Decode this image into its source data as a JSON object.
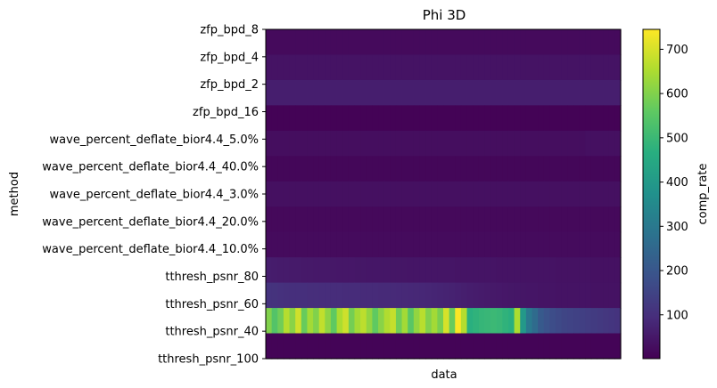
{
  "chart_data": {
    "type": "heatmap",
    "title": "Phi 3D",
    "xlabel": "data",
    "ylabel": "method",
    "colorbar_label": "comp_rate",
    "colormap": "viridis",
    "value_range": [
      1,
      745
    ],
    "colorbar_ticks": [
      100,
      200,
      300,
      400,
      500,
      600,
      700
    ],
    "rows": [
      "zfp_bpd_8",
      "zfp_bpd_4",
      "zfp_bpd_2",
      "zfp_bpd_16",
      "wave_percent_deflate_bior4.4_5.0%",
      "wave_percent_deflate_bior4.4_40.0%",
      "wave_percent_deflate_bior4.4_3.0%",
      "wave_percent_deflate_bior4.4_20.0%",
      "wave_percent_deflate_bior4.4_10.0%",
      "tthresh_psnr_80",
      "tthresh_psnr_60",
      "tthresh_psnr_40",
      "tthresh_psnr_100"
    ],
    "columns_count": 60,
    "values": [
      [
        20,
        20,
        20,
        20,
        20,
        20,
        20,
        20,
        20,
        20,
        20,
        20,
        20,
        20,
        20,
        20,
        20,
        20,
        20,
        20,
        20,
        20,
        20,
        20,
        20,
        20,
        20,
        20,
        20,
        20,
        20,
        20,
        20,
        20,
        20,
        20,
        20,
        20,
        20,
        20,
        20,
        20,
        20,
        20,
        20,
        20,
        20,
        20,
        20,
        20,
        20,
        20,
        20,
        20,
        20,
        20,
        20,
        20,
        20,
        20
      ],
      [
        38,
        38,
        38,
        38,
        38,
        38,
        38,
        38,
        38,
        38,
        38,
        38,
        38,
        38,
        38,
        38,
        38,
        38,
        38,
        38,
        38,
        38,
        38,
        38,
        38,
        38,
        38,
        38,
        38,
        38,
        38,
        38,
        38,
        38,
        38,
        38,
        38,
        38,
        38,
        38,
        38,
        38,
        38,
        38,
        38,
        38,
        38,
        38,
        38,
        38,
        38,
        38,
        38,
        38,
        38,
        38,
        38,
        38,
        38,
        38
      ],
      [
        62,
        62,
        62,
        62,
        62,
        62,
        62,
        62,
        62,
        62,
        62,
        62,
        62,
        62,
        62,
        62,
        62,
        62,
        62,
        62,
        62,
        62,
        62,
        62,
        62,
        62,
        62,
        62,
        62,
        62,
        62,
        62,
        62,
        62,
        62,
        62,
        62,
        62,
        62,
        62,
        62,
        62,
        62,
        62,
        62,
        62,
        62,
        62,
        62,
        62,
        62,
        62,
        62,
        62,
        62,
        62,
        62,
        62,
        62,
        62
      ],
      [
        6,
        6,
        6,
        6,
        6,
        6,
        6,
        6,
        6,
        6,
        6,
        6,
        6,
        6,
        6,
        6,
        6,
        6,
        6,
        6,
        6,
        6,
        6,
        6,
        6,
        6,
        6,
        6,
        6,
        6,
        6,
        6,
        6,
        6,
        6,
        6,
        6,
        6,
        6,
        6,
        6,
        6,
        6,
        6,
        6,
        6,
        6,
        6,
        6,
        6,
        6,
        6,
        6,
        6,
        6,
        6,
        6,
        6,
        6,
        6
      ],
      [
        28,
        28,
        28,
        28,
        28,
        28,
        28,
        28,
        28,
        28,
        28,
        28,
        28,
        28,
        28,
        28,
        28,
        28,
        28,
        28,
        28,
        28,
        28,
        28,
        28,
        28,
        28,
        28,
        28,
        28,
        28,
        28,
        28,
        28,
        28,
        28,
        28,
        28,
        28,
        28,
        28,
        28,
        28,
        28,
        28,
        28,
        28,
        28,
        28,
        28,
        28,
        28,
        28,
        28,
        33,
        33,
        33,
        33,
        33,
        33
      ],
      [
        14,
        14,
        14,
        14,
        14,
        14,
        14,
        14,
        14,
        14,
        14,
        14,
        14,
        14,
        14,
        14,
        14,
        14,
        14,
        14,
        14,
        14,
        14,
        14,
        14,
        14,
        14,
        14,
        14,
        14,
        14,
        14,
        14,
        14,
        14,
        14,
        14,
        14,
        14,
        14,
        14,
        14,
        14,
        14,
        14,
        14,
        14,
        14,
        14,
        14,
        14,
        14,
        14,
        14,
        14,
        14,
        14,
        14,
        14,
        14
      ],
      [
        33,
        33,
        33,
        33,
        33,
        33,
        33,
        33,
        33,
        33,
        33,
        33,
        33,
        33,
        33,
        33,
        33,
        33,
        33,
        33,
        33,
        33,
        33,
        33,
        33,
        33,
        33,
        33,
        33,
        33,
        33,
        33,
        33,
        33,
        33,
        33,
        33,
        33,
        33,
        33,
        33,
        33,
        33,
        33,
        33,
        33,
        33,
        33,
        33,
        33,
        33,
        33,
        33,
        33,
        33,
        33,
        33,
        33,
        33,
        33
      ],
      [
        17,
        17,
        17,
        17,
        17,
        17,
        17,
        17,
        17,
        17,
        17,
        17,
        17,
        17,
        17,
        17,
        17,
        17,
        17,
        17,
        17,
        17,
        17,
        17,
        17,
        17,
        17,
        17,
        17,
        17,
        17,
        17,
        17,
        17,
        17,
        17,
        17,
        17,
        17,
        17,
        17,
        17,
        17,
        17,
        17,
        17,
        17,
        17,
        17,
        17,
        17,
        17,
        17,
        17,
        17,
        17,
        17,
        17,
        17,
        17
      ],
      [
        22,
        22,
        22,
        22,
        22,
        22,
        22,
        22,
        22,
        22,
        22,
        22,
        22,
        22,
        22,
        22,
        22,
        22,
        22,
        22,
        22,
        22,
        22,
        22,
        22,
        22,
        22,
        22,
        22,
        22,
        22,
        22,
        22,
        22,
        22,
        22,
        22,
        22,
        22,
        22,
        22,
        22,
        22,
        22,
        22,
        22,
        22,
        22,
        22,
        22,
        22,
        22,
        22,
        22,
        22,
        22,
        22,
        22,
        22,
        22
      ],
      [
        60,
        58,
        56,
        55,
        54,
        53,
        52,
        51,
        50,
        50,
        50,
        49,
        48,
        48,
        48,
        47,
        47,
        46,
        46,
        46,
        46,
        45,
        45,
        45,
        44,
        44,
        44,
        44,
        43,
        43,
        43,
        43,
        42,
        42,
        42,
        42,
        41,
        41,
        41,
        40,
        40,
        40,
        40,
        39,
        39,
        39,
        38,
        38,
        38,
        37,
        37,
        37,
        36,
        36,
        36,
        35,
        35,
        35,
        34,
        34
      ],
      [
        110,
        108,
        104,
        102,
        100,
        99,
        98,
        96,
        96,
        95,
        94,
        93,
        93,
        92,
        92,
        91,
        90,
        90,
        89,
        88,
        88,
        87,
        86,
        85,
        84,
        83,
        82,
        80,
        78,
        76,
        73,
        70,
        67,
        64,
        61,
        58,
        55,
        53,
        51,
        50,
        48,
        47,
        46,
        45,
        44,
        43,
        42,
        41,
        41,
        40,
        40,
        39,
        39,
        38,
        38,
        37,
        37,
        36,
        36,
        36
      ],
      [
        600,
        540,
        580,
        660,
        610,
        690,
        570,
        640,
        600,
        675,
        615,
        560,
        650,
        690,
        585,
        640,
        670,
        620,
        560,
        610,
        655,
        680,
        580,
        640,
        550,
        620,
        665,
        600,
        640,
        590,
        700,
        570,
        740,
        660,
        470,
        480,
        490,
        495,
        500,
        495,
        480,
        470,
        650,
        400,
        300,
        260,
        210,
        190,
        175,
        165,
        155,
        150,
        145,
        140,
        135,
        130,
        125,
        120,
        115,
        110
      ],
      [
        8,
        8,
        8,
        8,
        8,
        8,
        8,
        8,
        8,
        8,
        8,
        8,
        8,
        8,
        8,
        8,
        8,
        8,
        8,
        8,
        8,
        8,
        8,
        8,
        8,
        8,
        8,
        8,
        8,
        8,
        8,
        8,
        8,
        8,
        8,
        8,
        8,
        8,
        8,
        8,
        8,
        8,
        8,
        8,
        8,
        8,
        8,
        8,
        8,
        8,
        8,
        8,
        8,
        8,
        8,
        8,
        8,
        8,
        8,
        8
      ]
    ]
  }
}
